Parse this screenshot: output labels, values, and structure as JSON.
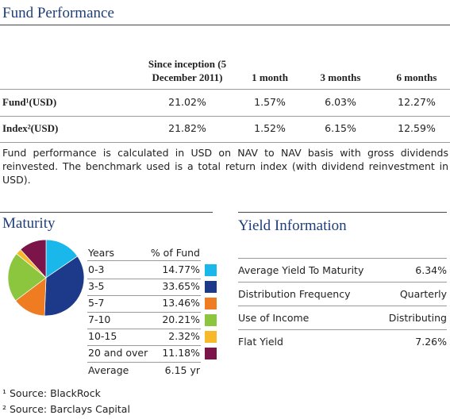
{
  "performance": {
    "title": "Fund Performance",
    "headers": [
      "Since inception (5 December 2011)",
      "1 month",
      "3 months",
      "6 months"
    ],
    "rows": [
      {
        "label": "Fund¹(USD)",
        "cells": [
          "21.02%",
          "1.57%",
          "6.03%",
          "12.27%"
        ]
      },
      {
        "label": "Index²(USD)",
        "cells": [
          "21.82%",
          "1.52%",
          "6.15%",
          "12.59%"
        ]
      }
    ],
    "note": "Fund performance is calculated in USD on NAV to NAV basis with gross dividends reinvested. The benchmark used is a total return index (with dividend reinvestment in USD)."
  },
  "maturity": {
    "title": "Maturity",
    "headers": [
      "Years",
      "% of Fund"
    ],
    "categories": [
      "0-3",
      "3-5",
      "5-7",
      "7-10",
      "10-15",
      "20 and over"
    ],
    "values": [
      14.77,
      33.65,
      13.46,
      20.21,
      2.32,
      11.18
    ],
    "value_labels": [
      "14.77%",
      "33.65%",
      "13.46%",
      "20.21%",
      "2.32%",
      "11.18%"
    ],
    "colors": [
      "#1ab7ea",
      "#1d3a8a",
      "#f07c22",
      "#8cc63f",
      "#f7b92a",
      "#7b1448"
    ],
    "average_label": "Average",
    "average": "6.15 yr"
  },
  "yield": {
    "title": "Yield Information",
    "rows": [
      [
        "Average Yield To Maturity",
        "6.34%"
      ],
      [
        "Distribution Frequency",
        "Quarterly"
      ],
      [
        "Use of Income",
        "Distributing"
      ],
      [
        "Flat Yield",
        "7.26%"
      ]
    ]
  },
  "footnotes": [
    "¹ Source: BlackRock",
    "² Source: Barclays Capital"
  ]
}
